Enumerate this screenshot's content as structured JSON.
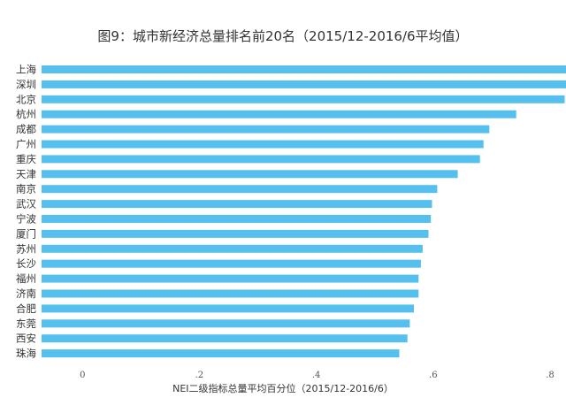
{
  "chart_data": {
    "type": "bar",
    "orientation": "horizontal",
    "title": "图9：城市新经济总量排名前20名（2015/12-2016/6平均值）",
    "xlabel": "NEI二级指标总量平均百分位（2015/12-2016/6）",
    "ylabel": "",
    "categories": [
      "上海",
      "深圳",
      "北京",
      "杭州",
      "成都",
      "广州",
      "重庆",
      "天津",
      "南京",
      "武汉",
      "宁波",
      "厦门",
      "苏州",
      "长沙",
      "福州",
      "济南",
      "合肥",
      "东莞",
      "西安",
      "珠海"
    ],
    "values": [
      0.872,
      0.84,
      0.825,
      0.742,
      0.696,
      0.686,
      0.68,
      0.642,
      0.607,
      0.598,
      0.596,
      0.592,
      0.582,
      0.579,
      0.575,
      0.575,
      0.567,
      0.56,
      0.556,
      0.542
    ],
    "xlim": [
      -0.07,
      0.8
    ],
    "xticks": [
      0,
      0.2,
      0.4,
      0.6,
      0.8
    ],
    "xtick_labels": [
      "0",
      ".2",
      ".4",
      ".6",
      ".8"
    ],
    "grid": false,
    "legend": "none",
    "bar_color": "#55c0ee"
  }
}
